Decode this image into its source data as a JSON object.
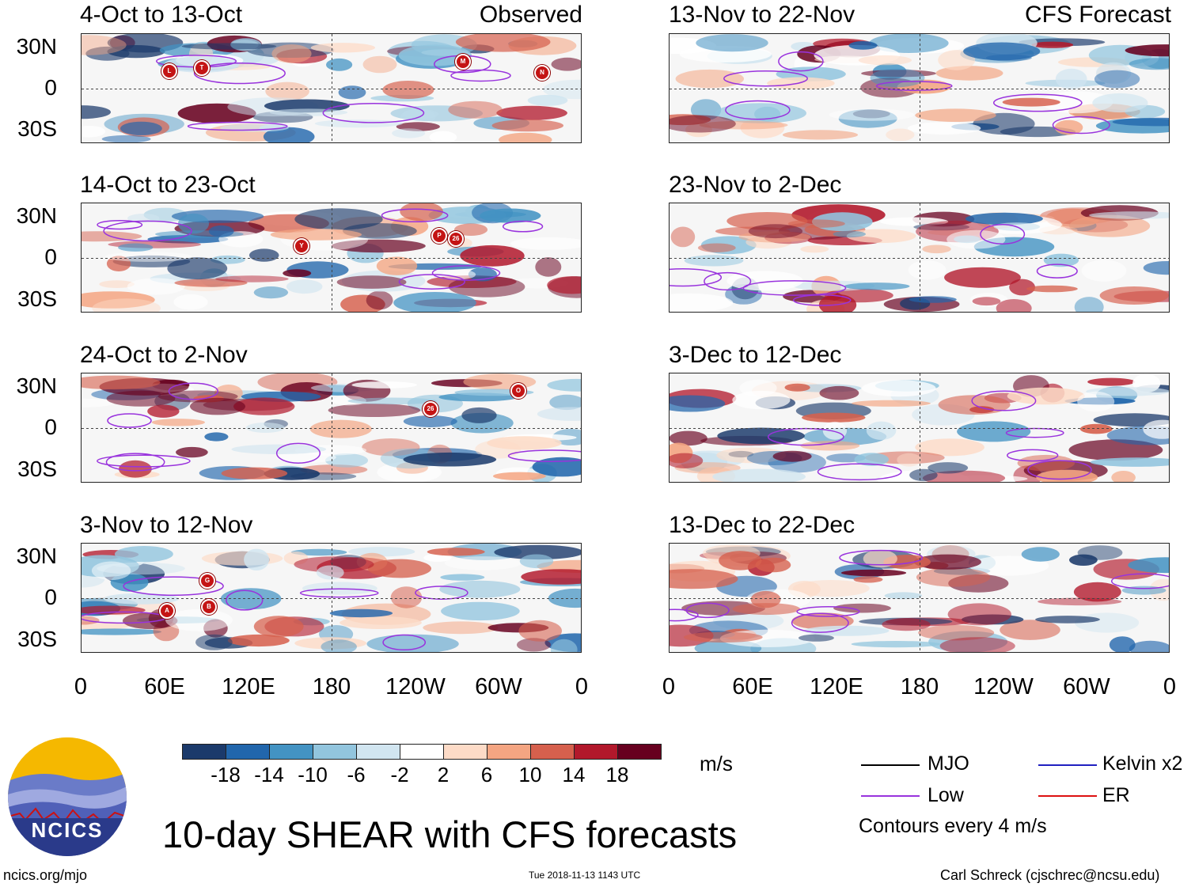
{
  "header": {
    "observed_label": "Observed",
    "forecast_label": "CFS Forecast"
  },
  "panels_left": [
    {
      "title": "4-Oct to 13-Oct",
      "storms": [
        "L",
        "T",
        "M",
        "N"
      ]
    },
    {
      "title": "14-Oct to 23-Oct",
      "storms": [
        "Y",
        "P",
        "26"
      ]
    },
    {
      "title": "24-Oct to 2-Nov",
      "storms": [
        "26",
        "O"
      ]
    },
    {
      "title": "3-Nov to 12-Nov",
      "storms": [
        "G",
        "B",
        "A"
      ]
    }
  ],
  "panels_right": [
    {
      "title": "13-Nov to 22-Nov"
    },
    {
      "title": "23-Nov to 2-Dec"
    },
    {
      "title": "3-Dec to 12-Dec"
    },
    {
      "title": "13-Dec to 22-Dec"
    }
  ],
  "lat_labels": [
    "30N",
    "0",
    "30S"
  ],
  "lon_labels": [
    "0",
    "60E",
    "120E",
    "180",
    "120W",
    "60W",
    "0"
  ],
  "colorbar": {
    "labels": [
      "-18",
      "-14",
      "-10",
      "-6",
      "-2",
      "2",
      "6",
      "10",
      "14",
      "18"
    ],
    "colors": [
      "#1b3a6b",
      "#2166ac",
      "#4393c3",
      "#92c5de",
      "#d1e5f0",
      "#ffffff",
      "#fddbc7",
      "#f4a582",
      "#d6604d",
      "#b2182b",
      "#67001f"
    ],
    "unit": "m/s"
  },
  "legend": {
    "mjo": "MJO",
    "kelvin": "Kelvin x2",
    "low": "Low",
    "er": "ER",
    "contours": "Contours every 4 m/s",
    "colors": {
      "mjo": "#000000",
      "kelvin": "#2020c0",
      "low": "#9933dd",
      "er": "#dd1111"
    }
  },
  "main_title": "10-day SHEAR with CFS forecasts",
  "logo_text": "NCICS",
  "footer": {
    "url": "ncics.org/mjo",
    "timestamp": "Tue 2018-11-13 1143 UTC",
    "author": "Carl Schreck (cjschrec@ncsu.edu)"
  }
}
